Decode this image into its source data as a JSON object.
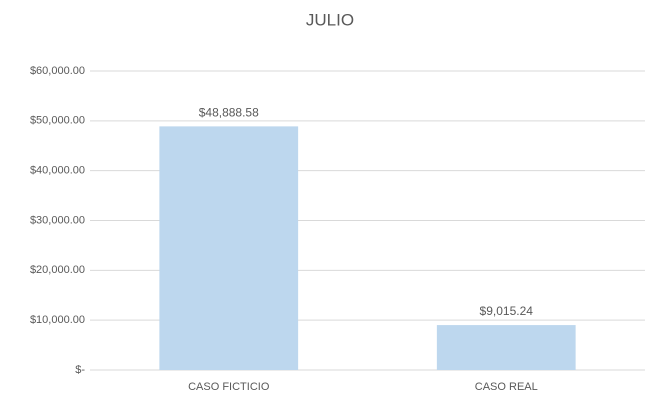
{
  "chart_data": {
    "type": "bar",
    "title": "JULIO",
    "categories": [
      "CASO FICTICIO",
      "CASO REAL"
    ],
    "values": [
      48888.58,
      9015.24
    ],
    "value_labels": [
      "$48,888.58",
      "$9,015.24"
    ],
    "color": "#bdd7ee",
    "ylim": [
      0,
      60000
    ],
    "yticks": [
      {
        "value": 0,
        "label": "$-"
      },
      {
        "value": 10000,
        "label": "$10,000.00"
      },
      {
        "value": 20000,
        "label": "$20,000.00"
      },
      {
        "value": 30000,
        "label": "$30,000.00"
      },
      {
        "value": 40000,
        "label": "$40,000.00"
      },
      {
        "value": 50000,
        "label": "$50,000.00"
      },
      {
        "value": 60000,
        "label": "$60,000.00"
      }
    ],
    "grid": true
  }
}
